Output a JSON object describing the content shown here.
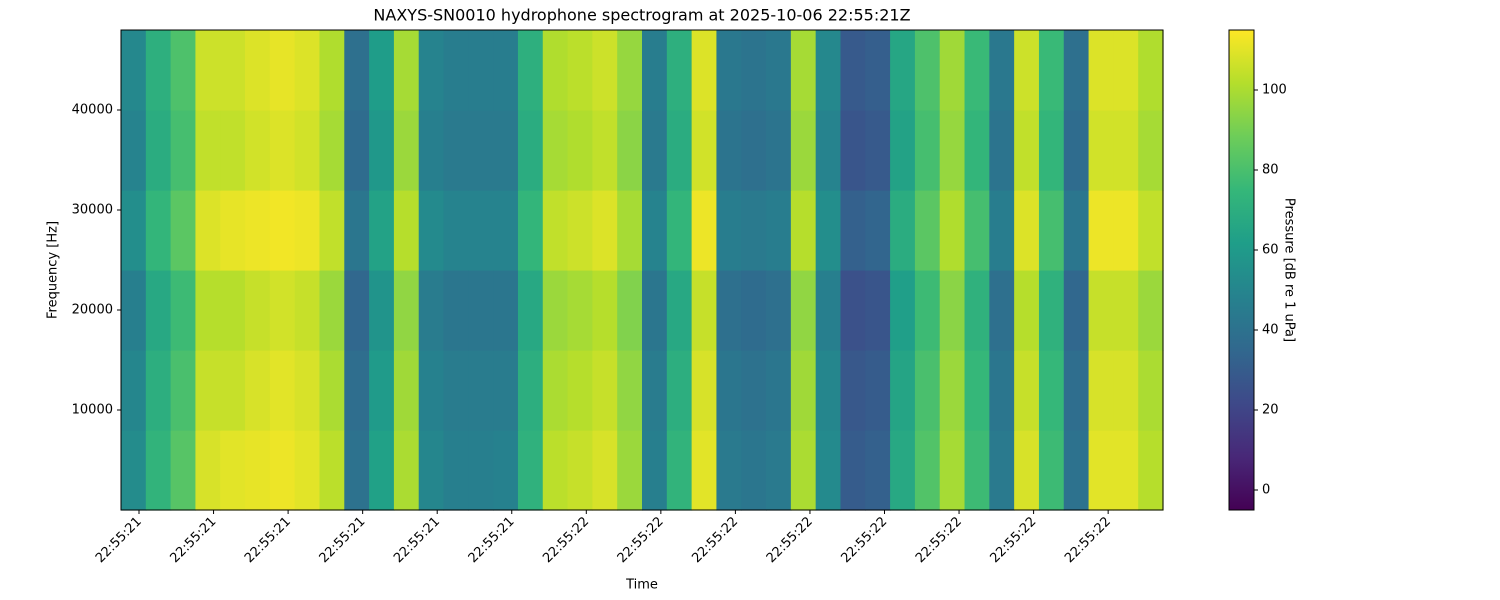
{
  "chart_data": {
    "type": "heatmap",
    "title": "NAXYS-SN0010 hydrophone spectrogram at 2025-10-06 22:55:21Z",
    "x_label": "Time",
    "y_label": "Frequency [Hz]",
    "colorbar_label": "Pressure [dB re 1 uPa]",
    "colormap": "viridis",
    "xticks": [
      "22:55:21",
      "22:55:21",
      "22:55:21",
      "22:55:21",
      "22:55:21",
      "22:55:21",
      "22:55:22",
      "22:55:22",
      "22:55:22",
      "22:55:22",
      "22:55:22",
      "22:55:22",
      "22:55:22",
      "22:55:22"
    ],
    "ylim": [
      0,
      48000
    ],
    "yticks": [
      10000,
      20000,
      30000,
      40000
    ],
    "frequency_bins": [
      0,
      8000,
      16000,
      24000,
      32000,
      40000,
      48000
    ],
    "clim": [
      -5,
      115
    ],
    "cticks": [
      0,
      20,
      40,
      60,
      80,
      100
    ],
    "values": [
      [
        53,
        73,
        83,
        108,
        110,
        111,
        112,
        110,
        103,
        40,
        63,
        100,
        50,
        47,
        47,
        48,
        72,
        103,
        105,
        108,
        97,
        47,
        73,
        110,
        44,
        42,
        44,
        100,
        52,
        30,
        32,
        67,
        82,
        99,
        77,
        44,
        108,
        77,
        40,
        110,
        110,
        102
      ],
      [
        50,
        70,
        80,
        105,
        105,
        108,
        110,
        108,
        100,
        38,
        60,
        98,
        48,
        45,
        45,
        45,
        70,
        100,
        102,
        105,
        95,
        45,
        70,
        108,
        42,
        40,
        42,
        98,
        50,
        28,
        30,
        65,
        80,
        97,
        75,
        42,
        105,
        75,
        38,
        108,
        108,
        100
      ],
      [
        47,
        67,
        77,
        102,
        102,
        105,
        107,
        105,
        97,
        35,
        57,
        95,
        45,
        42,
        42,
        42,
        67,
        97,
        99,
        102,
        92,
        42,
        67,
        105,
        39,
        37,
        39,
        95,
        47,
        25,
        27,
        62,
        77,
        94,
        72,
        39,
        102,
        72,
        35,
        105,
        105,
        97
      ],
      [
        54,
        74,
        84,
        109,
        111,
        112,
        113,
        112,
        104,
        42,
        64,
        102,
        52,
        49,
        49,
        49,
        74,
        104,
        106,
        109,
        99,
        49,
        74,
        112,
        46,
        44,
        46,
        102,
        54,
        32,
        34,
        69,
        84,
        101,
        79,
        46,
        109,
        79,
        42,
        112,
        112,
        104
      ],
      [
        49,
        69,
        79,
        104,
        104,
        107,
        109,
        107,
        99,
        37,
        59,
        97,
        47,
        44,
        44,
        44,
        69,
        99,
        101,
        104,
        94,
        44,
        69,
        107,
        41,
        39,
        41,
        97,
        49,
        27,
        29,
        64,
        79,
        96,
        74,
        41,
        104,
        74,
        37,
        107,
        107,
        99
      ],
      [
        51,
        71,
        81,
        106,
        106,
        109,
        111,
        109,
        101,
        39,
        61,
        99,
        49,
        46,
        46,
        46,
        71,
        101,
        103,
        106,
        96,
        46,
        71,
        109,
        43,
        41,
        43,
        99,
        51,
        29,
        31,
        66,
        81,
        98,
        76,
        43,
        106,
        76,
        39,
        109,
        109,
        101
      ]
    ]
  }
}
